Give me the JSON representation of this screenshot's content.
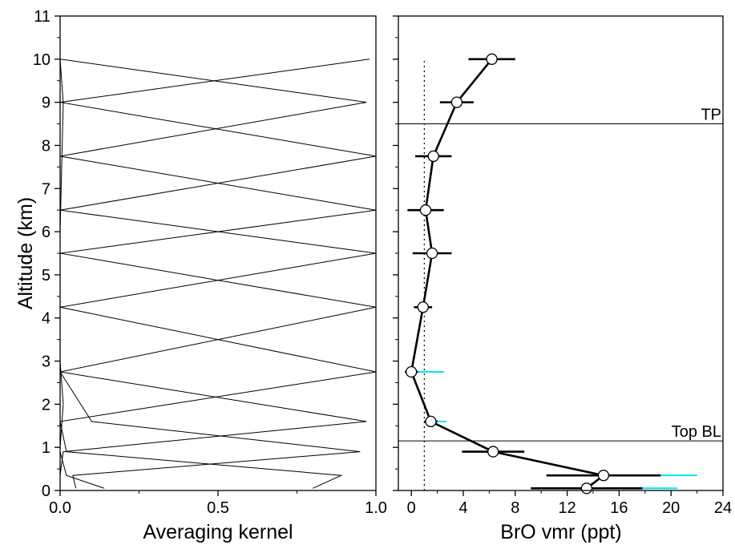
{
  "chart_data": [
    {
      "type": "line",
      "xlabel": "Averaging kernel",
      "ylabel": "Altitude (km)",
      "xlim": [
        0,
        1
      ],
      "ylim": [
        0,
        11
      ],
      "xticks": [
        "0.0",
        "0.5",
        "1.0"
      ],
      "yticks": [
        "0",
        "1",
        "2",
        "3",
        "4",
        "5",
        "6",
        "7",
        "8",
        "9",
        "10",
        "11"
      ],
      "retrieval_levels_km": [
        0.05,
        0.35,
        0.9,
        1.6,
        2.75,
        4.25,
        5.5,
        6.5,
        7.75,
        9.0,
        10.0
      ],
      "series": [
        {
          "points": [
            [
              0.14,
              0.05
            ],
            [
              0.02,
              0.35
            ],
            [
              0.0,
              0.9
            ],
            [
              0.0,
              1.6
            ],
            [
              0.0,
              2.75
            ],
            [
              0.0,
              4.25
            ],
            [
              0.0,
              5.5
            ],
            [
              0.0,
              6.5
            ],
            [
              0.0,
              7.75
            ],
            [
              0.0,
              9.0
            ],
            [
              0.0,
              10.0
            ]
          ]
        },
        {
          "points": [
            [
              0.8,
              0.05
            ],
            [
              0.89,
              0.35
            ],
            [
              0.02,
              0.9
            ],
            [
              0.0,
              1.6
            ],
            [
              0.0,
              2.75
            ],
            [
              0.0,
              4.25
            ],
            [
              0.0,
              5.5
            ],
            [
              0.0,
              6.5
            ],
            [
              0.0,
              7.75
            ],
            [
              0.0,
              9.0
            ],
            [
              0.0,
              10.0
            ]
          ]
        },
        {
          "points": [
            [
              0.05,
              0.05
            ],
            [
              0.04,
              0.35
            ],
            [
              0.95,
              0.9
            ],
            [
              0.1,
              1.6
            ],
            [
              0.0,
              2.75
            ],
            [
              0.0,
              4.25
            ],
            [
              0.0,
              5.5
            ],
            [
              0.0,
              6.5
            ],
            [
              0.0,
              7.75
            ],
            [
              0.0,
              9.0
            ],
            [
              0.0,
              10.0
            ]
          ]
        },
        {
          "points": [
            [
              0.0,
              0.05
            ],
            [
              0.0,
              0.35
            ],
            [
              0.01,
              0.9
            ],
            [
              0.97,
              1.6
            ],
            [
              0.0,
              2.75
            ],
            [
              0.0,
              4.25
            ],
            [
              0.0,
              5.5
            ],
            [
              0.0,
              6.5
            ],
            [
              0.0,
              7.75
            ],
            [
              0.0,
              9.0
            ],
            [
              0.0,
              10.0
            ]
          ]
        },
        {
          "points": [
            [
              0.0,
              0.05
            ],
            [
              0.0,
              0.35
            ],
            [
              0.0,
              0.9
            ],
            [
              0.0,
              1.6
            ],
            [
              1.0,
              2.75
            ],
            [
              0.0,
              4.25
            ],
            [
              0.0,
              5.5
            ],
            [
              0.0,
              6.5
            ],
            [
              0.0,
              7.75
            ],
            [
              0.0,
              9.0
            ],
            [
              0.0,
              10.0
            ]
          ]
        },
        {
          "points": [
            [
              0.0,
              0.05
            ],
            [
              0.0,
              0.35
            ],
            [
              0.0,
              0.9
            ],
            [
              0.0,
              1.6
            ],
            [
              0.0,
              2.75
            ],
            [
              1.0,
              4.25
            ],
            [
              0.0,
              5.5
            ],
            [
              0.0,
              6.5
            ],
            [
              0.0,
              7.75
            ],
            [
              0.0,
              9.0
            ],
            [
              0.0,
              10.0
            ]
          ]
        },
        {
          "points": [
            [
              0.0,
              0.05
            ],
            [
              0.0,
              0.35
            ],
            [
              0.0,
              0.9
            ],
            [
              0.0,
              1.6
            ],
            [
              0.0,
              2.75
            ],
            [
              0.0,
              4.25
            ],
            [
              1.0,
              5.5
            ],
            [
              0.0,
              6.5
            ],
            [
              0.0,
              7.75
            ],
            [
              0.0,
              9.0
            ],
            [
              0.0,
              10.0
            ]
          ]
        },
        {
          "points": [
            [
              0.0,
              0.05
            ],
            [
              0.0,
              0.35
            ],
            [
              0.0,
              0.9
            ],
            [
              0.0,
              1.6
            ],
            [
              0.0,
              2.75
            ],
            [
              0.0,
              4.25
            ],
            [
              0.0,
              5.5
            ],
            [
              1.0,
              6.5
            ],
            [
              0.0,
              7.75
            ],
            [
              0.0,
              9.0
            ],
            [
              0.0,
              10.0
            ]
          ]
        },
        {
          "points": [
            [
              0.0,
              0.05
            ],
            [
              0.0,
              0.35
            ],
            [
              0.0,
              0.9
            ],
            [
              0.0,
              1.6
            ],
            [
              0.0,
              2.75
            ],
            [
              0.0,
              4.25
            ],
            [
              0.0,
              5.5
            ],
            [
              0.0,
              6.5
            ],
            [
              1.0,
              7.75
            ],
            [
              0.0,
              9.0
            ],
            [
              0.0,
              10.0
            ]
          ]
        },
        {
          "points": [
            [
              0.0,
              0.05
            ],
            [
              0.0,
              0.35
            ],
            [
              0.0,
              0.9
            ],
            [
              0.0,
              1.6
            ],
            [
              0.0,
              2.75
            ],
            [
              0.0,
              4.25
            ],
            [
              0.0,
              5.5
            ],
            [
              0.0,
              6.5
            ],
            [
              0.0,
              7.75
            ],
            [
              0.97,
              9.0
            ],
            [
              0.0,
              10.0
            ]
          ]
        },
        {
          "points": [
            [
              0.0,
              0.05
            ],
            [
              0.0,
              0.35
            ],
            [
              0.0,
              0.9
            ],
            [
              0.0,
              1.6
            ],
            [
              0.0,
              2.75
            ],
            [
              0.0,
              4.25
            ],
            [
              0.0,
              5.5
            ],
            [
              0.0,
              6.5
            ],
            [
              0.0,
              7.75
            ],
            [
              0.0,
              9.0
            ],
            [
              0.98,
              10.0
            ]
          ]
        },
        {
          "points": [
            [
              0.0,
              0.05
            ],
            [
              0.0,
              1.0
            ],
            [
              0.01,
              2.0
            ],
            [
              0.0,
              3.0
            ],
            [
              0.0,
              6.0
            ],
            [
              0.01,
              9.0
            ],
            [
              0.0,
              10.0
            ]
          ]
        }
      ]
    },
    {
      "type": "scatter",
      "xlabel": "BrO vmr (ppt)",
      "xlim": [
        -1,
        24
      ],
      "ylim": [
        0,
        11
      ],
      "xticks": [
        "0",
        "4",
        "8",
        "12",
        "16",
        "20",
        "24"
      ],
      "points": [
        {
          "x": 13.5,
          "y": 0.05,
          "err": 4.3,
          "err_cyan": [
            13.5,
            20.5
          ]
        },
        {
          "x": 14.8,
          "y": 0.35,
          "err": 4.4,
          "err_cyan": [
            14.8,
            22.0
          ]
        },
        {
          "x": 6.3,
          "y": 0.9,
          "err": 2.4
        },
        {
          "x": 1.5,
          "y": 1.6,
          "err": 0.5,
          "err_cyan": [
            1.5,
            2.7
          ]
        },
        {
          "x": 0.0,
          "y": 2.75,
          "err": 0.5,
          "err_cyan": [
            0.0,
            2.5
          ]
        },
        {
          "x": 0.9,
          "y": 4.25,
          "err": 0.7
        },
        {
          "x": 1.6,
          "y": 5.5,
          "err": 1.5
        },
        {
          "x": 1.1,
          "y": 6.5,
          "err": 1.4
        },
        {
          "x": 1.7,
          "y": 7.75,
          "err": 1.4
        },
        {
          "x": 3.5,
          "y": 9.0,
          "err": 1.3
        },
        {
          "x": 6.2,
          "y": 10.0,
          "err": 1.8
        }
      ],
      "reference_x": 1.0,
      "hlines": [
        {
          "label": "TP",
          "y": 8.5
        },
        {
          "label": "Top BL",
          "y": 1.15
        }
      ],
      "colors": {
        "main": "#000000",
        "error_extension": "#00e5ee",
        "marker_fill": "#ffffff"
      }
    }
  ]
}
